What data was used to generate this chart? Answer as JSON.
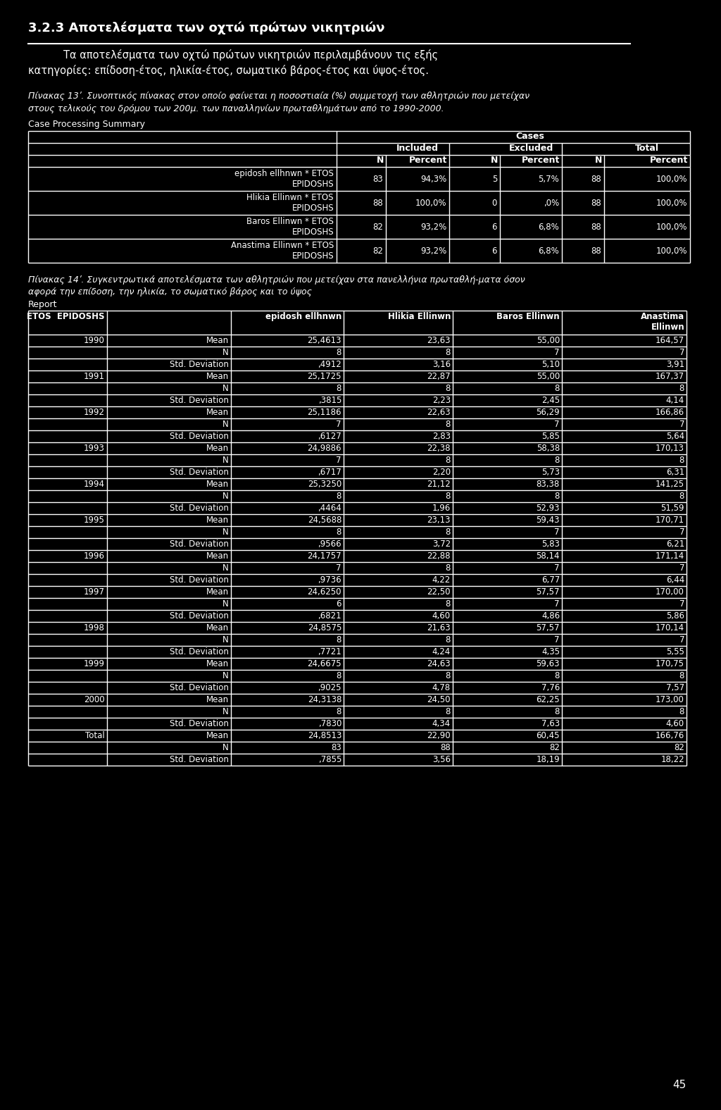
{
  "bg_color": "#000000",
  "text_color": "#ffffff",
  "page_number": "45",
  "title": "3.2.3 Αποτελέσματα των οχτώ πρώτων νικητριών",
  "paragraph1": "Τα αποτελέσματα των οχτώ πρώτων νικητριών περιλαμβάνουν τις εξής",
  "paragraph1b": "κατηγορίες: επίδοση-έτος, ηλικία-έτος, σωματικό βάρος-έτος και ύψος-έτος.",
  "caption1": "Πίνακας 13ʹ. Συνοπτικός πίνακας στον οποίο φαίνεται η ποσοστιαία (%) συμμετοχή των αθλητριών που μετείχαν",
  "caption1b": "στους τελικούς του δρόμου των 200μ. των παναλληνίων πρωταθλημάτων από το 1990-2000.",
  "cps_label": "Case Processing Summary",
  "cps_rows": [
    [
      "epidosh ellhnwn * ETOS\nEPIDOSHS",
      "83",
      "94,3%",
      "5",
      "5,7%",
      "88",
      "100,0%"
    ],
    [
      "Hlikia Ellinwn * ETOS\nEPIDOSHS",
      "88",
      "100,0%",
      "0",
      ",0%",
      "88",
      "100,0%"
    ],
    [
      "Baros Ellinwn * ETOS\nEPIDOSHS",
      "82",
      "93,2%",
      "6",
      "6,8%",
      "88",
      "100,0%"
    ],
    [
      "Anastima Ellinwn * ETOS\nEPIDOSHS",
      "82",
      "93,2%",
      "6",
      "6,8%",
      "88",
      "100,0%"
    ]
  ],
  "caption2": "Πίνακας 14ʹ. Συγκεντρωτικά αποτελέσματα των αθλητριών που μετείχαν στα πανελλήνια πρωταθλή-ματα όσον",
  "caption2b": "αφορά την επίδοση, την ηλικία, το σωματικό βάρος και το ύψος",
  "report_label": "Report",
  "report_rows": [
    [
      "1990",
      "Mean",
      "25,4613",
      "23,63",
      "55,00",
      "164,57"
    ],
    [
      "",
      "N",
      "8",
      "8",
      "7",
      "7"
    ],
    [
      "",
      "Std. Deviation",
      ",4912",
      "3,16",
      "5,10",
      "3,91"
    ],
    [
      "1991",
      "Mean",
      "25,1725",
      "22,87",
      "55,00",
      "167,37"
    ],
    [
      "",
      "N",
      "8",
      "8",
      "8",
      "8"
    ],
    [
      "",
      "Std. Deviation",
      ",3815",
      "2,23",
      "2,45",
      "4,14"
    ],
    [
      "1992",
      "Mean",
      "25,1186",
      "22,63",
      "56,29",
      "166,86"
    ],
    [
      "",
      "N",
      "7",
      "8",
      "7",
      "7"
    ],
    [
      "",
      "Std. Deviation",
      ",6127",
      "2,83",
      "5,85",
      "5,64"
    ],
    [
      "1993",
      "Mean",
      "24,9886",
      "22,38",
      "58,38",
      "170,13"
    ],
    [
      "",
      "N",
      "7",
      "8",
      "8",
      "8"
    ],
    [
      "",
      "Std. Deviation",
      ",6717",
      "2,20",
      "5,73",
      "6,31"
    ],
    [
      "1994",
      "Mean",
      "25,3250",
      "21,12",
      "83,38",
      "141,25"
    ],
    [
      "",
      "N",
      "8",
      "8",
      "8",
      "8"
    ],
    [
      "",
      "Std. Deviation",
      ",4464",
      "1,96",
      "52,93",
      "51,59"
    ],
    [
      "1995",
      "Mean",
      "24,5688",
      "23,13",
      "59,43",
      "170,71"
    ],
    [
      "",
      "N",
      "8",
      "8",
      "7",
      "7"
    ],
    [
      "",
      "Std. Deviation",
      ",9566",
      "3,72",
      "5,83",
      "6,21"
    ],
    [
      "1996",
      "Mean",
      "24,1757",
      "22,88",
      "58,14",
      "171,14"
    ],
    [
      "",
      "N",
      "7",
      "8",
      "7",
      "7"
    ],
    [
      "",
      "Std. Deviation",
      ",9736",
      "4,22",
      "6,77",
      "6,44"
    ],
    [
      "1997",
      "Mean",
      "24,6250",
      "22,50",
      "57,57",
      "170,00"
    ],
    [
      "",
      "N",
      "6",
      "8",
      "7",
      "7"
    ],
    [
      "",
      "Std. Deviation",
      ",6821",
      "4,60",
      "4,86",
      "5,86"
    ],
    [
      "1998",
      "Mean",
      "24,8575",
      "21,63",
      "57,57",
      "170,14"
    ],
    [
      "",
      "N",
      "8",
      "8",
      "7",
      "7"
    ],
    [
      "",
      "Std. Deviation",
      ",7721",
      "4,24",
      "4,35",
      "5,55"
    ],
    [
      "1999",
      "Mean",
      "24,6675",
      "24,63",
      "59,63",
      "170,75"
    ],
    [
      "",
      "N",
      "8",
      "8",
      "8",
      "8"
    ],
    [
      "",
      "Std. Deviation",
      ",9025",
      "4,78",
      "7,76",
      "7,57"
    ],
    [
      "2000",
      "Mean",
      "24,3138",
      "24,50",
      "62,25",
      "173,00"
    ],
    [
      "",
      "N",
      "8",
      "8",
      "8",
      "8"
    ],
    [
      "",
      "Std. Deviation",
      ",7830",
      "4,34",
      "7,63",
      "4,60"
    ],
    [
      "Total",
      "Mean",
      "24,8513",
      "22,90",
      "60,45",
      "166,76"
    ],
    [
      "",
      "N",
      "83",
      "88",
      "82",
      "82"
    ],
    [
      "",
      "Std. Deviation",
      ",7855",
      "3,56",
      "18,19",
      "18,22"
    ]
  ]
}
